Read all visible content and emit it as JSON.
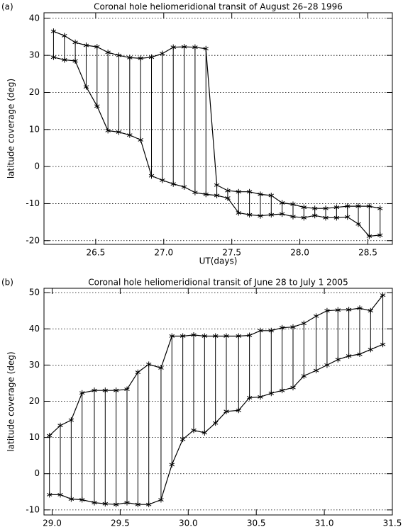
{
  "chart_data": [
    {
      "type": "range-line",
      "panel": "(a)",
      "title": "Coronal hole heliomeridional transit of August 26–28 1996",
      "xlabel": "UT(days)",
      "ylabel": "latitude coverage (deg)",
      "x": [
        26.19,
        26.27,
        26.35,
        26.43,
        26.51,
        26.59,
        26.67,
        26.75,
        26.83,
        26.91,
        26.99,
        27.07,
        27.15,
        27.23,
        27.31,
        27.39,
        27.47,
        27.55,
        27.63,
        27.71,
        27.79,
        27.87,
        27.95,
        28.03,
        28.11,
        28.19,
        28.27,
        28.35,
        28.43,
        28.51,
        28.59
      ],
      "series": [
        {
          "color": "#000000",
          "values": [
            36.5,
            35.3,
            33.5,
            32.7,
            32.3,
            30.8,
            30.0,
            29.4,
            29.2,
            29.5,
            30.5,
            32.2,
            32.3,
            32.2,
            31.8,
            -5,
            -6.5,
            -6.8,
            -6.8,
            -7.5,
            -7.8,
            -9.8,
            -10.2,
            -11,
            -11.3,
            -11.3,
            -11,
            -10.7,
            -10.7,
            -10.7,
            -11.3
          ]
        },
        {
          "color": "#000000",
          "values": [
            29.5,
            28.8,
            28.5,
            21.5,
            16.3,
            9.7,
            9.3,
            8.5,
            7.2,
            -2.5,
            -3.7,
            -4.7,
            -5.5,
            -7,
            -7.5,
            -7.8,
            -8.5,
            -12.5,
            -13,
            -13.3,
            -13,
            -12.8,
            -13.5,
            -13.8,
            -13.2,
            -13.8,
            -13.8,
            -13.6,
            -15.5,
            -18.8,
            -18.5
          ]
        }
      ],
      "xlim": [
        26.12,
        28.68
      ],
      "xticks": [
        26.5,
        {
          "value": 27,
          "label": "27.0"
        },
        27.5,
        {
          "value": 28,
          "label": "28.0"
        },
        28.5
      ],
      "ylim": [
        -21,
        41.5
      ],
      "yticks": [
        -20,
        -10,
        0,
        10,
        20,
        30,
        40
      ],
      "grid": true
    },
    {
      "type": "range-line",
      "panel": "(b)",
      "title": "Coronal hole heliomeridional transit of June 28 to July 1 2005",
      "ylabel": "latitude coverage (deg)",
      "x": [
        28.98,
        29.06,
        29.14,
        29.22,
        29.31,
        29.39,
        29.47,
        29.55,
        29.63,
        29.71,
        29.8,
        29.88,
        29.96,
        30.04,
        30.12,
        30.2,
        30.28,
        30.37,
        30.45,
        30.53,
        30.61,
        30.69,
        30.77,
        30.85,
        30.94,
        31.02,
        31.1,
        31.18,
        31.26,
        31.34,
        31.43
      ],
      "series": [
        {
          "color": "#000000",
          "values": [
            10.5,
            13.3,
            14.8,
            22.3,
            23,
            23,
            23,
            23.3,
            28,
            30.2,
            29.2,
            38,
            38,
            38.3,
            38,
            38,
            38,
            38,
            38.2,
            39.5,
            39.5,
            40.3,
            40.5,
            41.5,
            43.5,
            45,
            45.2,
            45.3,
            45.7,
            45,
            49.3
          ]
        },
        {
          "color": "#000000",
          "values": [
            -5.8,
            -5.8,
            -7,
            -7.2,
            -8,
            -8.3,
            -8.5,
            -8,
            -8.5,
            -8.5,
            -7.2,
            2.5,
            9.5,
            12,
            11.3,
            14,
            17.2,
            17.5,
            21,
            21.2,
            22.2,
            23,
            23.8,
            27,
            28.5,
            30,
            31.5,
            32.5,
            33,
            34.3,
            35.7
          ]
        }
      ],
      "xlim": [
        28.94,
        31.5
      ],
      "xticks": [
        {
          "value": 29,
          "label": "29.0"
        },
        29.5,
        {
          "value": 30,
          "label": "30.0"
        },
        30.5,
        {
          "value": 31,
          "label": "31.0"
        },
        31.5
      ],
      "ylim": [
        -11.4,
        51.2
      ],
      "yticks": [
        -10,
        0,
        10,
        20,
        30,
        40,
        50
      ],
      "grid": true
    }
  ]
}
